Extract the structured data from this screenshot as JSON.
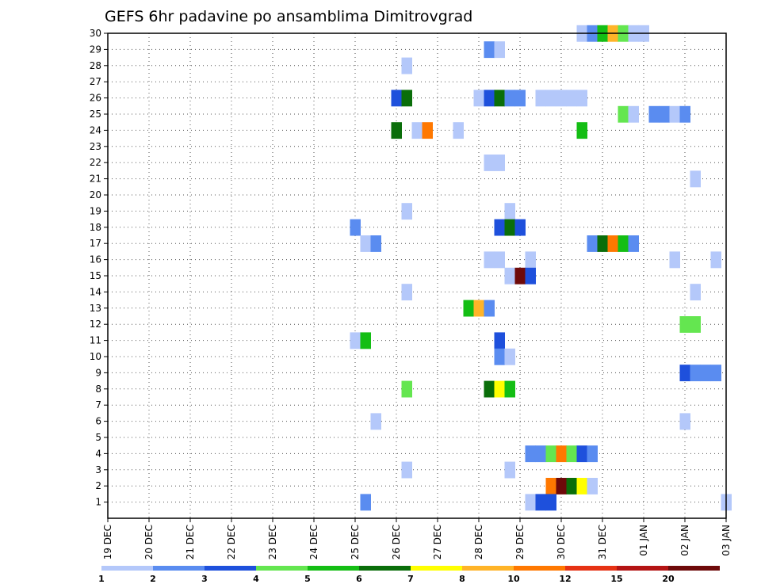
{
  "chart_data": {
    "type": "heatmap",
    "title": "GEFS 6hr padavine po ansamblima Dimitrovgrad",
    "xlabel": "",
    "ylabel": "",
    "x_ticks": [
      "19 DEC",
      "20 DEC",
      "21 DEC",
      "22 DEC",
      "23 DEC",
      "24 DEC",
      "25 DEC",
      "26 DEC",
      "27 DEC",
      "28 DEC",
      "29 DEC",
      "30 DEC",
      "31 DEC",
      "01 JAN",
      "02 JAN",
      "03 JAN"
    ],
    "xlim": [
      0,
      15
    ],
    "ylim": [
      0,
      30
    ],
    "y_ticks": [
      1,
      2,
      3,
      4,
      5,
      6,
      7,
      8,
      9,
      10,
      11,
      12,
      13,
      14,
      15,
      16,
      17,
      18,
      19,
      20,
      21,
      22,
      23,
      24,
      25,
      26,
      27,
      28,
      29,
      30
    ],
    "grid": true,
    "legend_position": "bottom",
    "levels": [
      "1",
      "2",
      "3",
      "4",
      "5",
      "6",
      "7",
      "8",
      "10",
      "12",
      "15",
      "20"
    ],
    "colors": [
      "#b4c8fa",
      "#5a8cf0",
      "#1e50dc",
      "#64e650",
      "#14be14",
      "#0a6e0a",
      "#ffff00",
      "#ffb428",
      "#ff7800",
      "#e63214",
      "#b41414",
      "#6e0a0a"
    ],
    "cells": [
      [
        11.5,
        30,
        0
      ],
      [
        11.75,
        30,
        1
      ],
      [
        12.0,
        30,
        4
      ],
      [
        12.25,
        30,
        7
      ],
      [
        12.5,
        30,
        3
      ],
      [
        12.75,
        30,
        0
      ],
      [
        13.0,
        30,
        0
      ],
      [
        9.25,
        29,
        1
      ],
      [
        9.5,
        29,
        0
      ],
      [
        7.25,
        28,
        0
      ],
      [
        7.0,
        26,
        2
      ],
      [
        7.25,
        26,
        5
      ],
      [
        9.0,
        26,
        0
      ],
      [
        9.25,
        26,
        2
      ],
      [
        9.5,
        26,
        5
      ],
      [
        9.75,
        26,
        1
      ],
      [
        10.0,
        26,
        1
      ],
      [
        10.5,
        26,
        0
      ],
      [
        10.75,
        26,
        0
      ],
      [
        11.0,
        26,
        0
      ],
      [
        11.25,
        26,
        0
      ],
      [
        11.5,
        26,
        0
      ],
      [
        12.5,
        25,
        3
      ],
      [
        12.75,
        25,
        0
      ],
      [
        13.25,
        25,
        1
      ],
      [
        13.5,
        25,
        1
      ],
      [
        13.75,
        25,
        0
      ],
      [
        14.0,
        25,
        1
      ],
      [
        7.0,
        24,
        5
      ],
      [
        7.5,
        24,
        0
      ],
      [
        7.75,
        24,
        8
      ],
      [
        8.5,
        24,
        0
      ],
      [
        11.5,
        24,
        4
      ],
      [
        9.25,
        22,
        0
      ],
      [
        9.5,
        22,
        0
      ],
      [
        14.25,
        21,
        0
      ],
      [
        7.25,
        19,
        0
      ],
      [
        9.75,
        19,
        0
      ],
      [
        6.0,
        18,
        1
      ],
      [
        9.5,
        18,
        2
      ],
      [
        9.75,
        18,
        5
      ],
      [
        10.0,
        18,
        2
      ],
      [
        6.25,
        17,
        0
      ],
      [
        6.5,
        17,
        1
      ],
      [
        11.75,
        17,
        1
      ],
      [
        12.0,
        17,
        5
      ],
      [
        12.25,
        17,
        8
      ],
      [
        12.5,
        17,
        4
      ],
      [
        12.75,
        17,
        1
      ],
      [
        9.25,
        16,
        0
      ],
      [
        9.5,
        16,
        0
      ],
      [
        10.25,
        16,
        0
      ],
      [
        13.75,
        16,
        0
      ],
      [
        14.75,
        16,
        0
      ],
      [
        9.75,
        15,
        0
      ],
      [
        10.0,
        15,
        11
      ],
      [
        10.25,
        15,
        2
      ],
      [
        7.25,
        14,
        0
      ],
      [
        14.25,
        14,
        0
      ],
      [
        8.75,
        13,
        4
      ],
      [
        9.0,
        13,
        7
      ],
      [
        9.25,
        13,
        1
      ],
      [
        14.0,
        12,
        3
      ],
      [
        14.25,
        12,
        3
      ],
      [
        6.0,
        11,
        0
      ],
      [
        6.25,
        11,
        4
      ],
      [
        9.5,
        11,
        2
      ],
      [
        9.5,
        10,
        1
      ],
      [
        9.75,
        10,
        0
      ],
      [
        14.0,
        9,
        2
      ],
      [
        14.25,
        9,
        1
      ],
      [
        14.5,
        9,
        1
      ],
      [
        14.75,
        9,
        1
      ],
      [
        7.25,
        8,
        3
      ],
      [
        9.25,
        8,
        5
      ],
      [
        9.5,
        8,
        6
      ],
      [
        9.75,
        8,
        4
      ],
      [
        6.5,
        6,
        0
      ],
      [
        14.0,
        6,
        0
      ],
      [
        10.25,
        4,
        1
      ],
      [
        10.5,
        4,
        1
      ],
      [
        10.75,
        4,
        3
      ],
      [
        11.0,
        4,
        8
      ],
      [
        11.25,
        4,
        3
      ],
      [
        11.5,
        4,
        2
      ],
      [
        11.75,
        4,
        1
      ],
      [
        7.25,
        3,
        0
      ],
      [
        9.75,
        3,
        0
      ],
      [
        10.75,
        2,
        8
      ],
      [
        11.0,
        2,
        11
      ],
      [
        11.25,
        2,
        5
      ],
      [
        11.5,
        2,
        6
      ],
      [
        11.75,
        2,
        0
      ],
      [
        6.25,
        1,
        1
      ],
      [
        10.25,
        1,
        0
      ],
      [
        10.5,
        1,
        2
      ],
      [
        10.75,
        1,
        2
      ],
      [
        15.0,
        1,
        0
      ]
    ]
  }
}
